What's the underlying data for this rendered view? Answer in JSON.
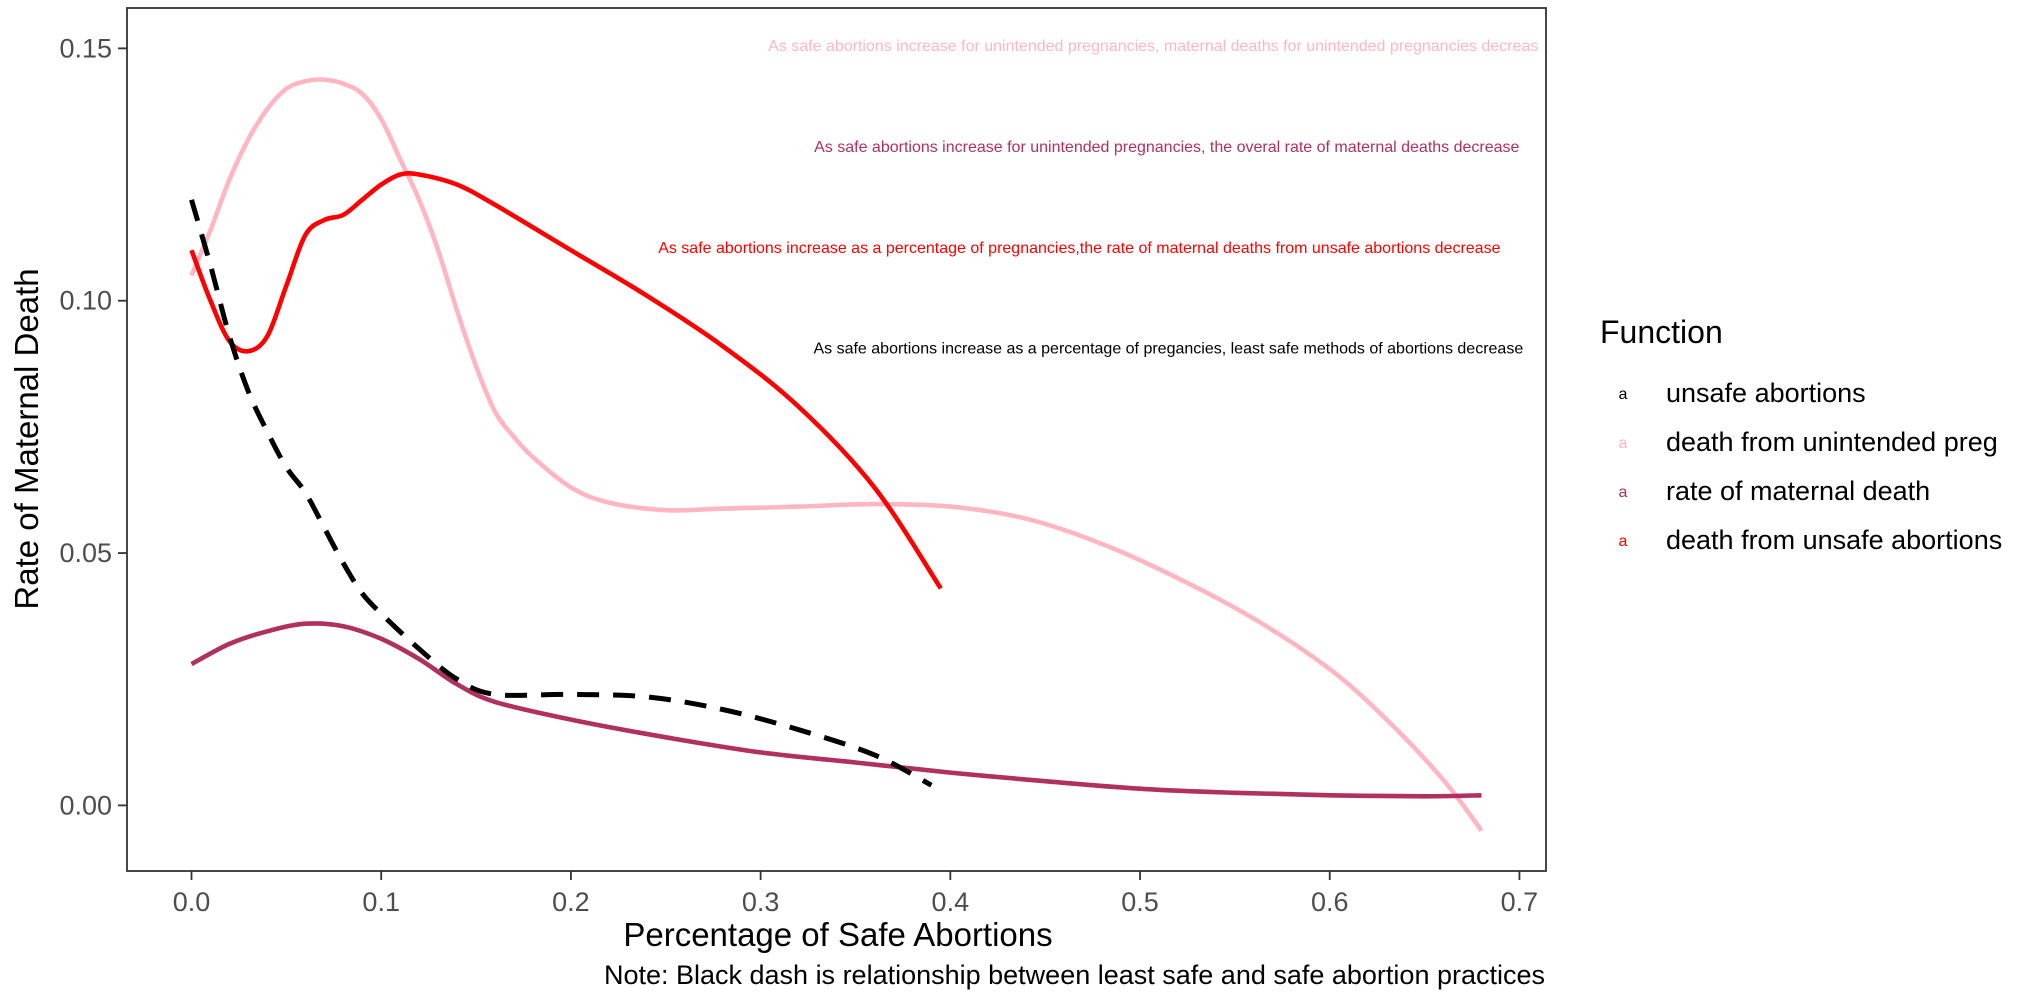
{
  "chart_data": {
    "type": "line",
    "title": "",
    "xlabel": "Percentage of Safe Abortions",
    "ylabel": "Rate of Maternal Death",
    "caption": "Note: Black dash is relationship between least safe and safe abortion practices",
    "xlim": [
      -0.034,
      0.714
    ],
    "ylim": [
      -0.013,
      0.158
    ],
    "x_ticks": [
      0.0,
      0.1,
      0.2,
      0.3,
      0.4,
      0.5,
      0.6,
      0.7
    ],
    "x_tick_labels": [
      "0.0",
      "0.1",
      "0.2",
      "0.3",
      "0.4",
      "0.5",
      "0.6",
      "0.7"
    ],
    "y_ticks": [
      0.0,
      0.05,
      0.1,
      0.15
    ],
    "y_tick_labels": [
      "0.00",
      "0.05",
      "0.10",
      "0.15"
    ],
    "grid": false,
    "legend": {
      "title": "Function",
      "placement": "right",
      "key_glyph": "a",
      "entries": [
        {
          "label": "unsafe abortions",
          "color": "#000000"
        },
        {
          "label": "death from unintended preg",
          "color": "#ffb6c1"
        },
        {
          "label": "rate of maternal death",
          "color": "#b03060"
        },
        {
          "label": "death from unsafe abortions",
          "color": "#ff0000"
        }
      ]
    },
    "series": [
      {
        "name": "death from unintended preg",
        "color": "#ffb6c1",
        "style": "solid",
        "points": [
          [
            0.0,
            0.105
          ],
          [
            0.01,
            0.114
          ],
          [
            0.02,
            0.124
          ],
          [
            0.03,
            0.132
          ],
          [
            0.04,
            0.138
          ],
          [
            0.05,
            0.142
          ],
          [
            0.06,
            0.1435
          ],
          [
            0.07,
            0.1438
          ],
          [
            0.08,
            0.143
          ],
          [
            0.09,
            0.141
          ],
          [
            0.1,
            0.136
          ],
          [
            0.11,
            0.128
          ],
          [
            0.12,
            0.12
          ],
          [
            0.13,
            0.11
          ],
          [
            0.14,
            0.098
          ],
          [
            0.15,
            0.087
          ],
          [
            0.16,
            0.078
          ],
          [
            0.17,
            0.073
          ],
          [
            0.18,
            0.069
          ],
          [
            0.2,
            0.063
          ],
          [
            0.22,
            0.06
          ],
          [
            0.25,
            0.0585
          ],
          [
            0.28,
            0.0588
          ],
          [
            0.32,
            0.0592
          ],
          [
            0.36,
            0.0597
          ],
          [
            0.4,
            0.0592
          ],
          [
            0.44,
            0.0568
          ],
          [
            0.48,
            0.0518
          ],
          [
            0.52,
            0.045
          ],
          [
            0.56,
            0.037
          ],
          [
            0.6,
            0.027
          ],
          [
            0.63,
            0.017
          ],
          [
            0.66,
            0.005
          ],
          [
            0.68,
            -0.005
          ]
        ]
      },
      {
        "name": "rate of maternal death",
        "color": "#b03060",
        "style": "solid",
        "points": [
          [
            0.0,
            0.028
          ],
          [
            0.02,
            0.032
          ],
          [
            0.04,
            0.0345
          ],
          [
            0.06,
            0.036
          ],
          [
            0.08,
            0.0355
          ],
          [
            0.1,
            0.033
          ],
          [
            0.12,
            0.029
          ],
          [
            0.14,
            0.024
          ],
          [
            0.16,
            0.0205
          ],
          [
            0.2,
            0.017
          ],
          [
            0.25,
            0.0135
          ],
          [
            0.3,
            0.0105
          ],
          [
            0.35,
            0.0085
          ],
          [
            0.4,
            0.0065
          ],
          [
            0.45,
            0.0048
          ],
          [
            0.5,
            0.0033
          ],
          [
            0.55,
            0.0025
          ],
          [
            0.6,
            0.002
          ],
          [
            0.65,
            0.0018
          ],
          [
            0.68,
            0.002
          ]
        ]
      },
      {
        "name": "death from unsafe abortions",
        "color": "#ff0000",
        "style": "solid",
        "points": [
          [
            0.0,
            0.11
          ],
          [
            0.01,
            0.1
          ],
          [
            0.02,
            0.092
          ],
          [
            0.03,
            0.09
          ],
          [
            0.04,
            0.093
          ],
          [
            0.05,
            0.103
          ],
          [
            0.06,
            0.113
          ],
          [
            0.07,
            0.116
          ],
          [
            0.08,
            0.117
          ],
          [
            0.09,
            0.12
          ],
          [
            0.1,
            0.123
          ],
          [
            0.11,
            0.125
          ],
          [
            0.12,
            0.125
          ],
          [
            0.14,
            0.123
          ],
          [
            0.16,
            0.119
          ],
          [
            0.2,
            0.11
          ],
          [
            0.24,
            0.101
          ],
          [
            0.28,
            0.091
          ],
          [
            0.32,
            0.079
          ],
          [
            0.36,
            0.063
          ],
          [
            0.395,
            0.043
          ]
        ]
      },
      {
        "name": "unsafe abortions",
        "color": "#000000",
        "style": "dashed",
        "points": [
          [
            0.0,
            0.12
          ],
          [
            0.01,
            0.107
          ],
          [
            0.02,
            0.093
          ],
          [
            0.03,
            0.082
          ],
          [
            0.04,
            0.074
          ],
          [
            0.05,
            0.067
          ],
          [
            0.06,
            0.062
          ],
          [
            0.07,
            0.055
          ],
          [
            0.08,
            0.048
          ],
          [
            0.09,
            0.042
          ],
          [
            0.1,
            0.038
          ],
          [
            0.12,
            0.031
          ],
          [
            0.14,
            0.025
          ],
          [
            0.16,
            0.022
          ],
          [
            0.2,
            0.022
          ],
          [
            0.24,
            0.0215
          ],
          [
            0.28,
            0.019
          ],
          [
            0.32,
            0.015
          ],
          [
            0.36,
            0.01
          ],
          [
            0.39,
            0.004
          ]
        ]
      }
    ],
    "annotations": [
      {
        "text": "As safe abortions increase for unintended pregnancies, maternal deaths for unintended pregnancies decreas",
        "color": "#ffb6c1",
        "x": 0.71,
        "y": 0.1495
      },
      {
        "text": "As safe abortions increase for unintended pregnancies, the overal rate of maternal deaths decrease",
        "color": "#b03060",
        "x": 0.7,
        "y": 0.1295
      },
      {
        "text": "As safe abortions increase as a percentage of pregnancies,the rate of maternal deaths from unsafe abortions decrease",
        "color": "#ff0000",
        "x": 0.69,
        "y": 0.1095
      },
      {
        "text": "As safe abortions increase as a percentage of pregancies, least safe methods of abortions decrease",
        "color": "#000000",
        "x": 0.702,
        "y": 0.0895
      }
    ]
  }
}
